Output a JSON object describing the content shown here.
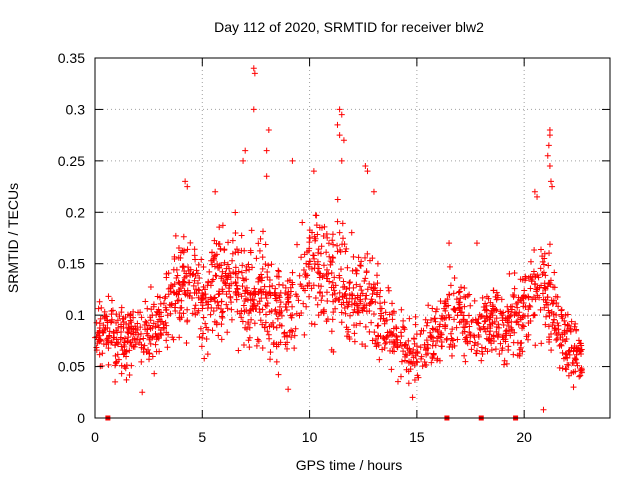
{
  "chart_data": {
    "type": "scatter",
    "title": "Day 112 of 2020, SRMTID for receiver blw2",
    "xlabel": "GPS time / hours",
    "ylabel": "SRMTID / TECUs",
    "xlim": [
      0,
      24
    ],
    "ylim": [
      0,
      0.35
    ],
    "xticks": [
      0,
      5,
      10,
      15,
      20
    ],
    "yticks": [
      0,
      0.05,
      0.1,
      0.15,
      0.2,
      0.25,
      0.3,
      0.35
    ],
    "xtick_labels": [
      "0",
      "5",
      "10",
      "15",
      "20"
    ],
    "ytick_labels": [
      "0",
      "0.05",
      "0.1",
      "0.15",
      "0.2",
      "0.25",
      "0.3",
      "0.35"
    ],
    "grid": true,
    "marker": "+",
    "series_color": "#ff0000",
    "outliers": [
      {
        "x": 7.4,
        "y": 0.34
      },
      {
        "x": 7.45,
        "y": 0.335
      },
      {
        "x": 7.4,
        "y": 0.3
      },
      {
        "x": 8.1,
        "y": 0.28
      },
      {
        "x": 8.0,
        "y": 0.26
      },
      {
        "x": 7.0,
        "y": 0.26
      },
      {
        "x": 11.4,
        "y": 0.3
      },
      {
        "x": 11.5,
        "y": 0.295
      },
      {
        "x": 11.3,
        "y": 0.285
      },
      {
        "x": 11.4,
        "y": 0.275
      },
      {
        "x": 11.6,
        "y": 0.27
      },
      {
        "x": 11.5,
        "y": 0.25
      },
      {
        "x": 12.6,
        "y": 0.245
      },
      {
        "x": 12.7,
        "y": 0.24
      },
      {
        "x": 9.2,
        "y": 0.25
      },
      {
        "x": 10.2,
        "y": 0.24
      },
      {
        "x": 13.0,
        "y": 0.22
      },
      {
        "x": 6.9,
        "y": 0.25
      },
      {
        "x": 21.2,
        "y": 0.28
      },
      {
        "x": 21.2,
        "y": 0.275
      },
      {
        "x": 21.15,
        "y": 0.265
      },
      {
        "x": 21.1,
        "y": 0.255
      },
      {
        "x": 21.2,
        "y": 0.245
      },
      {
        "x": 21.3,
        "y": 0.225
      },
      {
        "x": 21.25,
        "y": 0.23
      },
      {
        "x": 20.5,
        "y": 0.22
      },
      {
        "x": 20.6,
        "y": 0.215
      },
      {
        "x": 4.2,
        "y": 0.23
      },
      {
        "x": 4.3,
        "y": 0.225
      },
      {
        "x": 5.6,
        "y": 0.22
      },
      {
        "x": 8.0,
        "y": 0.235
      },
      {
        "x": 17.8,
        "y": 0.17
      },
      {
        "x": 16.5,
        "y": 0.17
      },
      {
        "x": 20.9,
        "y": 0.008
      },
      {
        "x": 22.3,
        "y": 0.03
      },
      {
        "x": 2.2,
        "y": 0.025
      },
      {
        "x": 9.0,
        "y": 0.028
      },
      {
        "x": 14.8,
        "y": 0.02
      }
    ],
    "zero_markers": [
      0.6,
      16.4,
      18.0,
      19.6
    ],
    "profile": [
      {
        "x": 0.0,
        "c": 0.08,
        "s": 0.02
      },
      {
        "x": 0.5,
        "c": 0.085,
        "s": 0.02
      },
      {
        "x": 1.0,
        "c": 0.075,
        "s": 0.025
      },
      {
        "x": 1.5,
        "c": 0.075,
        "s": 0.025
      },
      {
        "x": 2.0,
        "c": 0.085,
        "s": 0.025
      },
      {
        "x": 2.5,
        "c": 0.09,
        "s": 0.025
      },
      {
        "x": 3.0,
        "c": 0.09,
        "s": 0.025
      },
      {
        "x": 3.5,
        "c": 0.11,
        "s": 0.03
      },
      {
        "x": 4.0,
        "c": 0.13,
        "s": 0.035
      },
      {
        "x": 4.5,
        "c": 0.13,
        "s": 0.03
      },
      {
        "x": 5.0,
        "c": 0.11,
        "s": 0.03
      },
      {
        "x": 5.5,
        "c": 0.13,
        "s": 0.035
      },
      {
        "x": 6.0,
        "c": 0.135,
        "s": 0.035
      },
      {
        "x": 6.5,
        "c": 0.13,
        "s": 0.035
      },
      {
        "x": 7.0,
        "c": 0.125,
        "s": 0.04
      },
      {
        "x": 7.5,
        "c": 0.12,
        "s": 0.04
      },
      {
        "x": 8.0,
        "c": 0.12,
        "s": 0.04
      },
      {
        "x": 8.5,
        "c": 0.105,
        "s": 0.035
      },
      {
        "x": 9.0,
        "c": 0.11,
        "s": 0.035
      },
      {
        "x": 9.5,
        "c": 0.12,
        "s": 0.035
      },
      {
        "x": 10.0,
        "c": 0.14,
        "s": 0.04
      },
      {
        "x": 10.5,
        "c": 0.14,
        "s": 0.04
      },
      {
        "x": 11.0,
        "c": 0.13,
        "s": 0.04
      },
      {
        "x": 11.5,
        "c": 0.13,
        "s": 0.045
      },
      {
        "x": 12.0,
        "c": 0.12,
        "s": 0.035
      },
      {
        "x": 12.5,
        "c": 0.12,
        "s": 0.035
      },
      {
        "x": 13.0,
        "c": 0.11,
        "s": 0.035
      },
      {
        "x": 13.5,
        "c": 0.09,
        "s": 0.03
      },
      {
        "x": 14.0,
        "c": 0.08,
        "s": 0.025
      },
      {
        "x": 14.5,
        "c": 0.07,
        "s": 0.02
      },
      {
        "x": 15.0,
        "c": 0.065,
        "s": 0.02
      },
      {
        "x": 15.5,
        "c": 0.07,
        "s": 0.02
      },
      {
        "x": 16.0,
        "c": 0.085,
        "s": 0.025
      },
      {
        "x": 16.5,
        "c": 0.1,
        "s": 0.025
      },
      {
        "x": 17.0,
        "c": 0.1,
        "s": 0.025
      },
      {
        "x": 17.5,
        "c": 0.09,
        "s": 0.025
      },
      {
        "x": 18.0,
        "c": 0.09,
        "s": 0.025
      },
      {
        "x": 18.5,
        "c": 0.095,
        "s": 0.025
      },
      {
        "x": 19.0,
        "c": 0.09,
        "s": 0.025
      },
      {
        "x": 19.5,
        "c": 0.095,
        "s": 0.03
      },
      {
        "x": 20.0,
        "c": 0.1,
        "s": 0.03
      },
      {
        "x": 20.5,
        "c": 0.13,
        "s": 0.035
      },
      {
        "x": 21.0,
        "c": 0.12,
        "s": 0.04
      },
      {
        "x": 21.5,
        "c": 0.1,
        "s": 0.035
      },
      {
        "x": 22.0,
        "c": 0.07,
        "s": 0.025
      },
      {
        "x": 22.6,
        "c": 0.06,
        "s": 0.02
      }
    ],
    "x_range_data": [
      0.0,
      22.7
    ]
  }
}
